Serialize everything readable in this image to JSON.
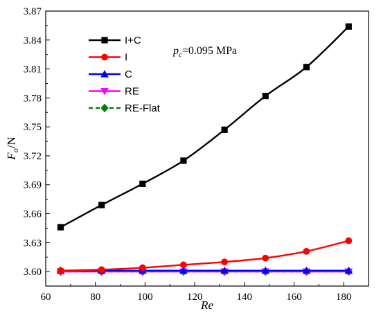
{
  "chart_data": {
    "type": "line",
    "xlabel": "Re",
    "ylabel": {
      "main": "F",
      "sub": "o",
      "unit": "/N"
    },
    "xlim": [
      60,
      190
    ],
    "ylim": [
      3.585,
      3.87
    ],
    "xticks": [
      "60",
      "80",
      "100",
      "120",
      "140",
      "160",
      "180"
    ],
    "yticks": [
      "3.60",
      "3.63",
      "3.66",
      "3.69",
      "3.72",
      "3.75",
      "3.78",
      "3.81",
      "3.84",
      "3.87"
    ],
    "x": [
      66,
      82.5,
      99,
      115.5,
      132,
      148.5,
      165,
      182
    ],
    "grid": false,
    "legend_position": "top-left",
    "annotation": {
      "p": "p",
      "sub": "c",
      "rest": "=0.095 MPa"
    },
    "series": [
      {
        "name": "I+C",
        "color": "#000000",
        "marker": "square",
        "dash": "",
        "values": [
          3.646,
          3.669,
          3.691,
          3.715,
          3.747,
          3.782,
          3.812,
          3.854
        ]
      },
      {
        "name": "I",
        "color": "#ff0000",
        "marker": "circle",
        "dash": "",
        "values": [
          3.601,
          3.602,
          3.604,
          3.607,
          3.61,
          3.614,
          3.621,
          3.632
        ]
      },
      {
        "name": "C",
        "color": "#0000ff",
        "marker": "triangle-up",
        "dash": "",
        "values": [
          3.601,
          3.601,
          3.601,
          3.601,
          3.601,
          3.601,
          3.601,
          3.601
        ]
      },
      {
        "name": "RE",
        "color": "#ff00ff",
        "marker": "triangle-down",
        "dash": "",
        "values": [
          3.6,
          3.6,
          3.6,
          3.6,
          3.6,
          3.6,
          3.6,
          3.6
        ]
      },
      {
        "name": "RE-Flat",
        "color": "#008000",
        "marker": "diamond",
        "dash": "6,4",
        "values": [
          3.6,
          3.6,
          3.6,
          3.6,
          3.6,
          3.6,
          3.6,
          3.6
        ]
      }
    ]
  }
}
